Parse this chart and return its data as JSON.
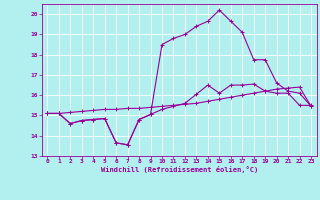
{
  "xlabel": "Windchill (Refroidissement éolien,°C)",
  "bg_color": "#b2f0f0",
  "grid_color": "#c8e8e8",
  "line_color": "#990099",
  "xlim": [
    -0.5,
    23.5
  ],
  "ylim": [
    13,
    20.5
  ],
  "yticks": [
    13,
    14,
    15,
    16,
    17,
    18,
    19,
    20
  ],
  "xticks": [
    0,
    1,
    2,
    3,
    4,
    5,
    6,
    7,
    8,
    9,
    10,
    11,
    12,
    13,
    14,
    15,
    16,
    17,
    18,
    19,
    20,
    21,
    22,
    23
  ],
  "line1_x": [
    0,
    1,
    2,
    3,
    4,
    5,
    6,
    7,
    8,
    9,
    10,
    11,
    12,
    13,
    14,
    15,
    16,
    17,
    18,
    19,
    20,
    21,
    22,
    23
  ],
  "line1_y": [
    15.1,
    15.1,
    14.6,
    14.75,
    14.8,
    14.85,
    13.65,
    13.55,
    14.8,
    15.05,
    15.3,
    15.45,
    15.6,
    16.05,
    16.5,
    16.1,
    16.5,
    16.5,
    16.55,
    16.2,
    16.1,
    16.1,
    15.5,
    15.5
  ],
  "line2_x": [
    0,
    1,
    2,
    3,
    4,
    5,
    6,
    7,
    8,
    9,
    10,
    11,
    12,
    13,
    14,
    15,
    16,
    17,
    18,
    19,
    20,
    21,
    22,
    23
  ],
  "line2_y": [
    15.1,
    15.1,
    15.15,
    15.2,
    15.25,
    15.3,
    15.3,
    15.35,
    15.35,
    15.4,
    15.45,
    15.5,
    15.55,
    15.6,
    15.7,
    15.8,
    15.9,
    16.0,
    16.1,
    16.2,
    16.3,
    16.35,
    16.4,
    15.45
  ],
  "line3_x": [
    0,
    1,
    2,
    3,
    4,
    5,
    6,
    7,
    8,
    9,
    10,
    11,
    12,
    13,
    14,
    15,
    16,
    17,
    18,
    19,
    20,
    21,
    22,
    23
  ],
  "line3_y": [
    15.1,
    15.1,
    14.6,
    14.75,
    14.8,
    14.85,
    13.65,
    13.55,
    14.8,
    15.05,
    18.5,
    18.8,
    19.0,
    19.4,
    19.65,
    20.2,
    19.65,
    19.1,
    17.75,
    17.75,
    16.6,
    16.2,
    16.1,
    15.45
  ]
}
